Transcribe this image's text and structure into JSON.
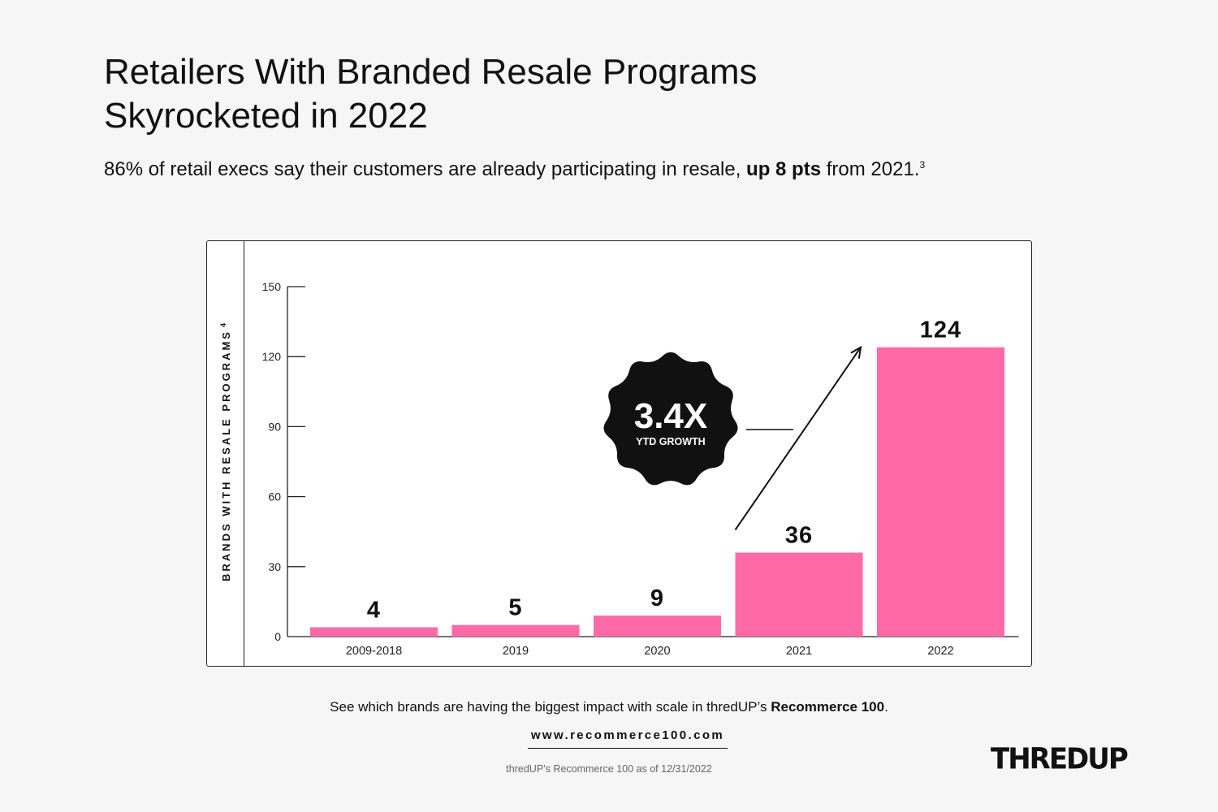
{
  "header": {
    "title_line1": "Retailers With Branded Resale Programs",
    "title_line2": "Skyrocketed in 2022",
    "subtitle_pre": "86% of retail execs say their customers are already participating in resale,",
    "subtitle_bold": "up 8 pts",
    "subtitle_post": "from 2021.",
    "subtitle_footnote": "3"
  },
  "chart_data": {
    "type": "bar",
    "categories": [
      "2009-2018",
      "2019",
      "2020",
      "2021",
      "2022"
    ],
    "values": [
      4,
      5,
      9,
      36,
      124
    ],
    "data_labels": [
      "4",
      "5",
      "9",
      "36",
      "124"
    ],
    "ylabel": "BRANDS WITH RESALE PROGRAMS",
    "ylabel_footnote": "4",
    "ylim": [
      0,
      150
    ],
    "yticks": [
      0,
      30,
      60,
      90,
      120,
      150
    ],
    "bar_color": "#ff69a6",
    "grid": false,
    "legend": "none",
    "annotation": {
      "value": "3.4X",
      "label": "YTD GROWTH",
      "badge_color": "#111111",
      "from_category": "2021",
      "to_category": "2022"
    }
  },
  "footer": {
    "line_pre": "See which brands are having the biggest impact with scale in thredUP’s",
    "line_bold": "Recommerce 100",
    "line_post": ".",
    "url": "www.recommerce100.com",
    "note": "thredUP’s Recommerce 100 as of 12/31/2022",
    "logo": "THREDUP"
  },
  "colors": {
    "background": "#f6f6f6",
    "bar": "#ff69a6",
    "text": "#111111"
  }
}
